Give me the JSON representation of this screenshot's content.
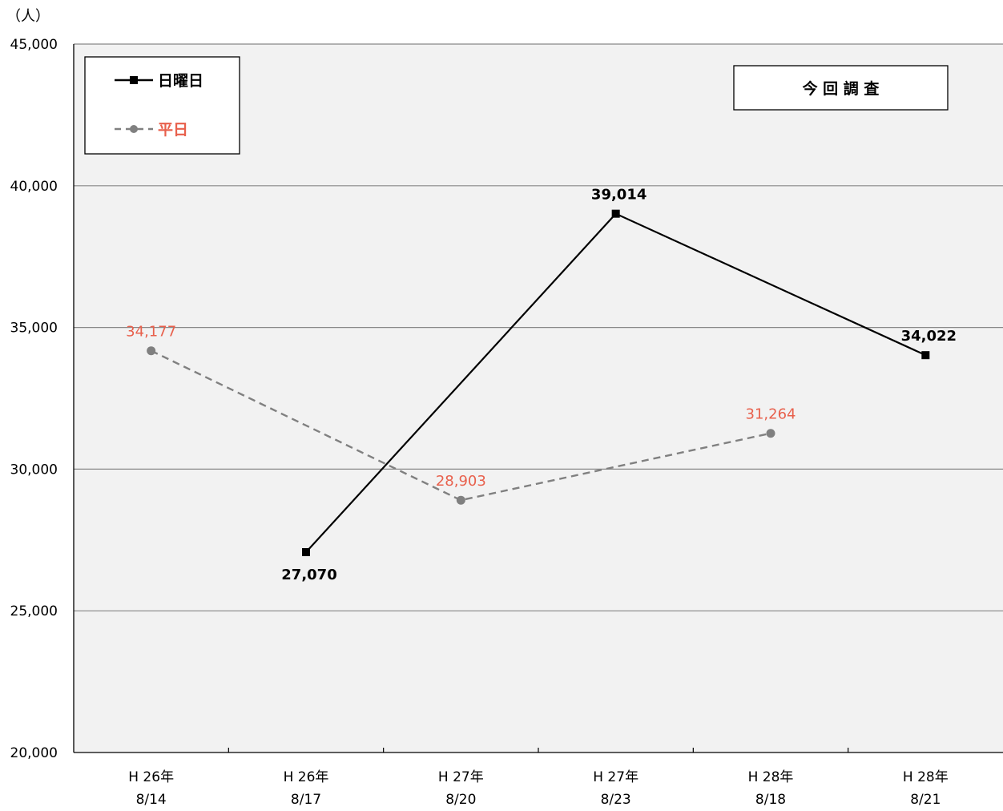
{
  "chart_data": {
    "type": "line",
    "y_unit": "（人）",
    "categories": [
      {
        "line1": "H 26年",
        "line2": "8/14"
      },
      {
        "line1": "H 26年",
        "line2": "8/17"
      },
      {
        "line1": "H 27年",
        "line2": "8/20"
      },
      {
        "line1": "H 27年",
        "line2": "8/23"
      },
      {
        "line1": "H 28年",
        "line2": "8/18"
      },
      {
        "line1": "H 28年",
        "line2": "8/21"
      }
    ],
    "ylim": [
      20000,
      45000
    ],
    "yticks": [
      20000,
      25000,
      30000,
      35000,
      40000,
      45000
    ],
    "ytick_labels": [
      "20,000",
      "25,000",
      "30,000",
      "35,000",
      "40,000",
      "45,000"
    ],
    "grid": true,
    "legend_position": "top-left",
    "series": [
      {
        "name": "日曜日",
        "color": "#000000",
        "label_color": "#000000",
        "line_style": "solid",
        "marker": "square",
        "values": [
          null,
          27070,
          null,
          39014,
          null,
          34022
        ],
        "labels": [
          null,
          "27,070",
          null,
          "39,014",
          null,
          "34,022"
        ]
      },
      {
        "name": "平日",
        "color": "#808080",
        "label_color": "#e8604c",
        "line_style": "dashed",
        "marker": "circle",
        "values": [
          34177,
          null,
          28903,
          null,
          31264,
          null
        ],
        "labels": [
          "34,177",
          null,
          "28,903",
          null,
          "31,264",
          null
        ]
      }
    ],
    "annotation": "今 回 調 査",
    "colors": {
      "plot_background": "#f2f2f2",
      "gridline": "#888888",
      "axis": "#000000"
    }
  }
}
